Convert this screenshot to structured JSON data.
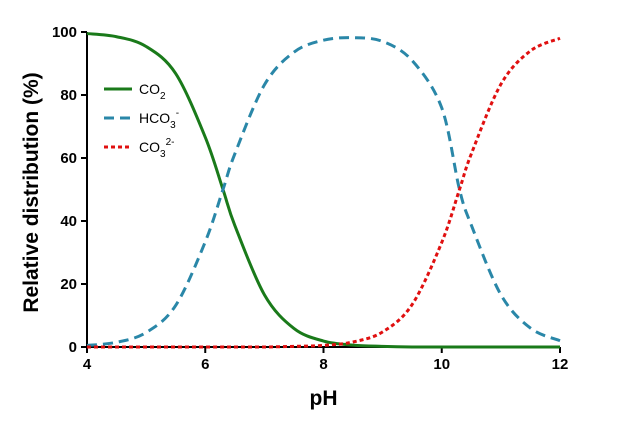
{
  "chart_data": {
    "type": "line",
    "xlabel": "pH",
    "ylabel": "Relative distribution (%)",
    "xlim": [
      4,
      12
    ],
    "ylim": [
      0,
      100
    ],
    "x_ticks": [
      "4",
      "6",
      "8",
      "10",
      "12"
    ],
    "y_ticks": [
      "0",
      "20",
      "40",
      "60",
      "80",
      "100"
    ],
    "grid": false,
    "legend_position": "top-left",
    "x": [
      4,
      4.5,
      5,
      5.5,
      6,
      6.3,
      6.5,
      7,
      7.5,
      8,
      8.5,
      9,
      9.5,
      10,
      10.3,
      10.5,
      11,
      11.5,
      12
    ],
    "series": [
      {
        "name": "CO",
        "sub": "2",
        "sup": "",
        "color": "#1a7a1a",
        "dash": "solid",
        "values": [
          99.5,
          98.5,
          95.4,
          86.8,
          66.6,
          50.0,
          38.6,
          16.6,
          5.9,
          1.9,
          0.6,
          0.2,
          0.0,
          0.0,
          0.0,
          0.0,
          0.0,
          0.0,
          0.0
        ]
      },
      {
        "name": "HCO",
        "sub": "3",
        "sup": "-",
        "color": "#2a87a8",
        "dash": "dashed",
        "values": [
          0.5,
          1.5,
          4.6,
          13.2,
          33.4,
          50.0,
          61.3,
          83.2,
          93.6,
          97.4,
          98.2,
          97.0,
          90.9,
          75.9,
          50.0,
          38.7,
          16.6,
          6.0,
          2.0
        ]
      },
      {
        "name": "CO",
        "sub": "3",
        "sup": "2-",
        "color": "#e01010",
        "dash": "dotted",
        "values": [
          0.0,
          0.0,
          0.0,
          0.0,
          0.0,
          0.0,
          0.0,
          0.0,
          0.2,
          0.5,
          1.6,
          4.8,
          13.5,
          33.2,
          50.0,
          61.3,
          83.4,
          94.0,
          98.0
        ]
      }
    ]
  }
}
